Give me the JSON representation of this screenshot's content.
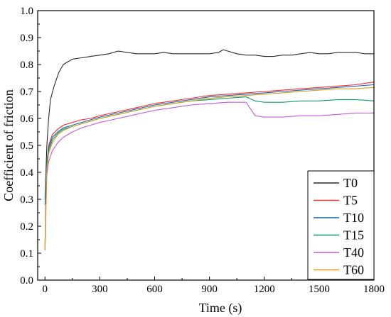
{
  "chart_data": {
    "type": "line",
    "xlabel": "Time (s)",
    "ylabel": "Coefficient of friction",
    "xlim": [
      -40,
      1800
    ],
    "ylim": [
      0.0,
      1.0
    ],
    "x_ticks": [
      0,
      300,
      600,
      900,
      1200,
      1500,
      1800
    ],
    "y_ticks": [
      0.0,
      0.1,
      0.2,
      0.3,
      0.4,
      0.5,
      0.6,
      0.7,
      0.8,
      0.9,
      1.0
    ],
    "x_tick_labels": [
      "0",
      "300",
      "600",
      "900",
      "1200",
      "1500",
      "1800"
    ],
    "y_tick_labels": [
      "0.0",
      "0.1",
      "0.2",
      "0.3",
      "0.4",
      "0.5",
      "0.6",
      "0.7",
      "0.8",
      "0.9",
      "1.0"
    ],
    "legend_position": "bottom-right",
    "grid": false,
    "series": [
      {
        "name": "T0",
        "color": "#2b2b2b",
        "x": [
          0,
          5,
          10,
          20,
          30,
          50,
          75,
          100,
          150,
          200,
          250,
          300,
          350,
          400,
          450,
          500,
          550,
          600,
          650,
          700,
          750,
          800,
          850,
          900,
          950,
          975,
          1000,
          1050,
          1100,
          1150,
          1200,
          1250,
          1300,
          1350,
          1400,
          1450,
          1500,
          1550,
          1600,
          1650,
          1700,
          1750,
          1800
        ],
        "y": [
          0.3,
          0.4,
          0.5,
          0.6,
          0.67,
          0.72,
          0.77,
          0.8,
          0.82,
          0.825,
          0.83,
          0.835,
          0.84,
          0.85,
          0.845,
          0.84,
          0.84,
          0.84,
          0.845,
          0.84,
          0.84,
          0.84,
          0.84,
          0.84,
          0.845,
          0.855,
          0.85,
          0.84,
          0.835,
          0.835,
          0.83,
          0.83,
          0.835,
          0.835,
          0.84,
          0.845,
          0.84,
          0.84,
          0.845,
          0.845,
          0.845,
          0.84,
          0.84
        ]
      },
      {
        "name": "T5",
        "color": "#ff2a2a",
        "x": [
          0,
          5,
          10,
          20,
          40,
          70,
          100,
          150,
          200,
          250,
          300,
          400,
          500,
          600,
          700,
          800,
          900,
          1000,
          1100,
          1200,
          1300,
          1400,
          1500,
          1600,
          1700,
          1800
        ],
        "y": [
          0.12,
          0.3,
          0.42,
          0.5,
          0.54,
          0.56,
          0.575,
          0.585,
          0.595,
          0.6,
          0.61,
          0.625,
          0.64,
          0.655,
          0.665,
          0.675,
          0.685,
          0.69,
          0.695,
          0.7,
          0.705,
          0.71,
          0.715,
          0.72,
          0.725,
          0.735
        ]
      },
      {
        "name": "T10",
        "color": "#1566b5",
        "x": [
          0,
          5,
          10,
          20,
          40,
          70,
          100,
          150,
          200,
          250,
          300,
          400,
          500,
          600,
          700,
          800,
          900,
          1000,
          1100,
          1200,
          1300,
          1400,
          1500,
          1600,
          1700,
          1800
        ],
        "y": [
          0.28,
          0.38,
          0.44,
          0.49,
          0.53,
          0.55,
          0.565,
          0.575,
          0.585,
          0.595,
          0.605,
          0.62,
          0.635,
          0.65,
          0.66,
          0.67,
          0.68,
          0.685,
          0.69,
          0.695,
          0.7,
          0.705,
          0.71,
          0.715,
          0.72,
          0.725
        ]
      },
      {
        "name": "T15",
        "color": "#0c9c72",
        "x": [
          0,
          5,
          10,
          20,
          40,
          70,
          100,
          150,
          200,
          250,
          300,
          400,
          500,
          600,
          700,
          800,
          900,
          1000,
          1100,
          1150,
          1200,
          1300,
          1400,
          1500,
          1600,
          1700,
          1800
        ],
        "y": [
          0.13,
          0.32,
          0.43,
          0.48,
          0.52,
          0.545,
          0.56,
          0.57,
          0.58,
          0.59,
          0.6,
          0.615,
          0.63,
          0.645,
          0.655,
          0.665,
          0.67,
          0.675,
          0.68,
          0.665,
          0.66,
          0.66,
          0.665,
          0.665,
          0.67,
          0.67,
          0.665
        ]
      },
      {
        "name": "T40",
        "color": "#c05cd6",
        "x": [
          0,
          5,
          10,
          20,
          40,
          70,
          100,
          150,
          200,
          250,
          300,
          400,
          500,
          600,
          700,
          800,
          900,
          1000,
          1100,
          1150,
          1200,
          1300,
          1400,
          1500,
          1600,
          1700,
          1800
        ],
        "y": [
          0.11,
          0.26,
          0.39,
          0.44,
          0.48,
          0.51,
          0.53,
          0.55,
          0.565,
          0.575,
          0.585,
          0.6,
          0.615,
          0.63,
          0.64,
          0.65,
          0.655,
          0.66,
          0.66,
          0.61,
          0.605,
          0.605,
          0.61,
          0.61,
          0.615,
          0.62,
          0.62
        ]
      },
      {
        "name": "T60",
        "color": "#e09a10",
        "x": [
          0,
          5,
          10,
          20,
          40,
          70,
          100,
          150,
          200,
          250,
          300,
          400,
          500,
          600,
          700,
          800,
          900,
          1000,
          1100,
          1200,
          1300,
          1400,
          1500,
          1600,
          1700,
          1800
        ],
        "y": [
          0.11,
          0.3,
          0.41,
          0.47,
          0.51,
          0.54,
          0.555,
          0.57,
          0.58,
          0.59,
          0.6,
          0.615,
          0.63,
          0.645,
          0.655,
          0.665,
          0.675,
          0.68,
          0.685,
          0.69,
          0.695,
          0.7,
          0.705,
          0.71,
          0.71,
          0.715
        ]
      }
    ]
  }
}
